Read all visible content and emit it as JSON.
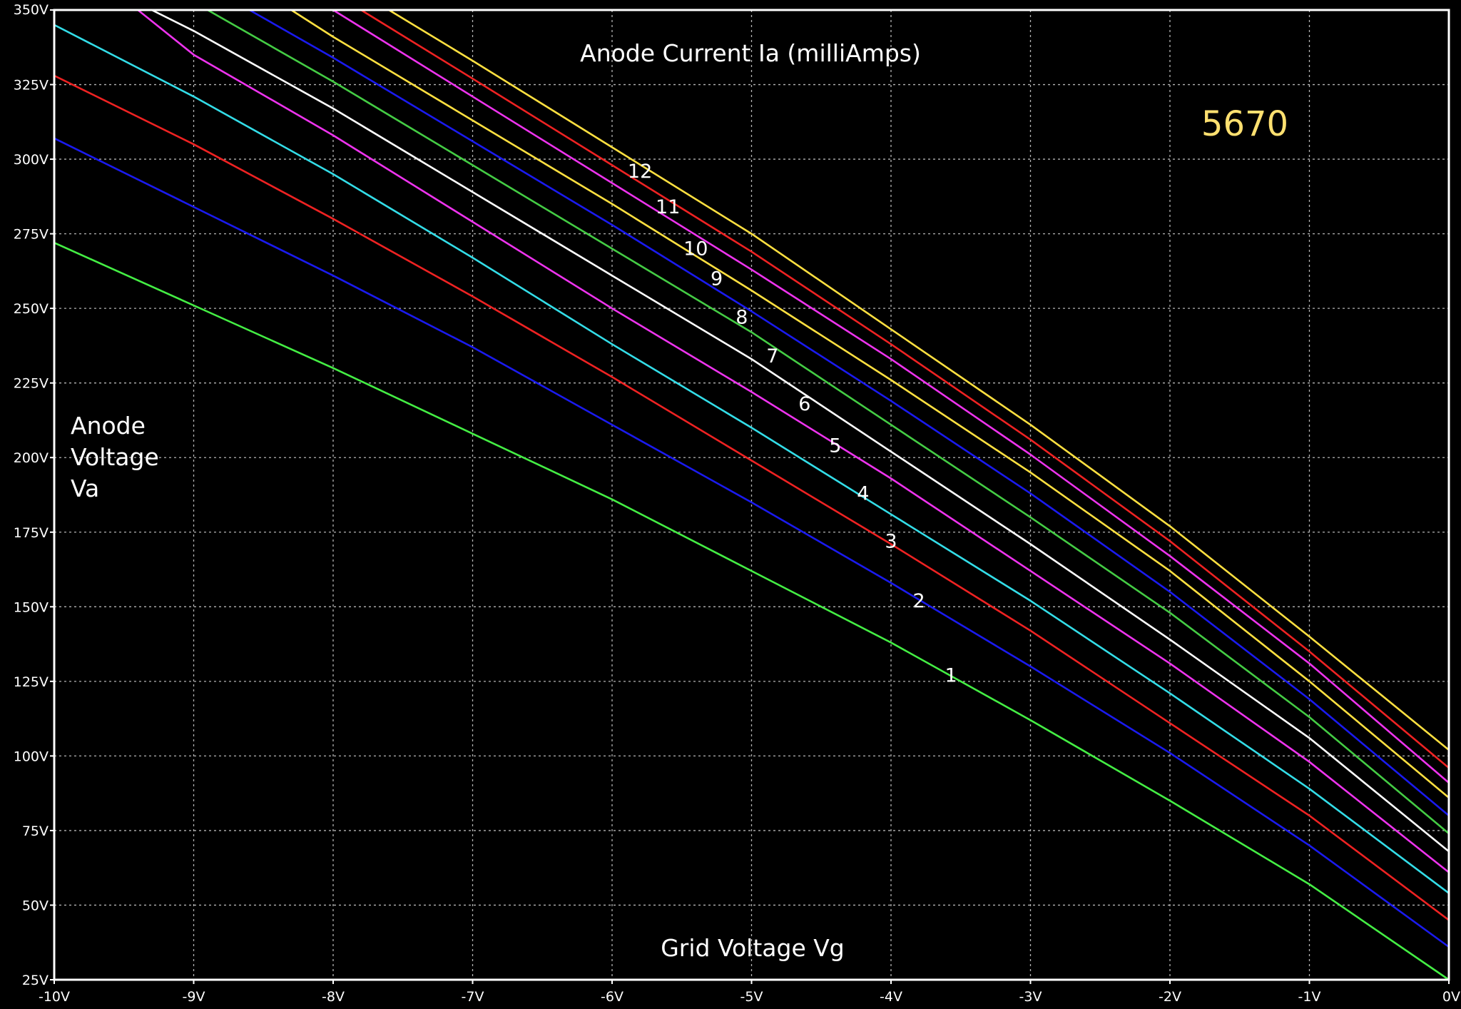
{
  "chart_data": {
    "type": "line",
    "title": "Anode Current Ia (milliAmps)",
    "subtitle": "5670",
    "xlabel": "Grid Voltage Vg",
    "ylabel": "Anode Voltage Va",
    "ylabel_lines": [
      "Anode",
      "Voltage",
      "Va"
    ],
    "xlim": [
      -10,
      0
    ],
    "ylim": [
      25,
      350
    ],
    "x_ticks": [
      -10,
      -9,
      -8,
      -7,
      -6,
      -5,
      -4,
      -3,
      -2,
      -1,
      0
    ],
    "y_ticks": [
      25,
      50,
      75,
      100,
      125,
      150,
      175,
      200,
      225,
      250,
      275,
      300,
      325,
      350
    ],
    "x_tick_labels": [
      "-10V",
      "-9V",
      "-8V",
      "-7V",
      "-6V",
      "-5V",
      "-4V",
      "-3V",
      "-2V",
      "-1V",
      "0V"
    ],
    "y_tick_labels": [
      "25V",
      "50V",
      "75V",
      "100V",
      "125V",
      "150V",
      "175V",
      "200V",
      "225V",
      "250V",
      "275V",
      "300V",
      "325V",
      "350V"
    ],
    "grid": true,
    "background_color": "#000000",
    "title_color": "#ffe070",
    "series": [
      {
        "name": "1",
        "color": "#44ee44",
        "x": [
          -10,
          -9,
          -8,
          -7,
          -6,
          -5,
          -4,
          -3,
          -2,
          -1,
          0
        ],
        "y": [
          272,
          251,
          230,
          208,
          186,
          162,
          138,
          112,
          85,
          57,
          25
        ]
      },
      {
        "name": "2",
        "color": "#1a1aee",
        "x": [
          -10,
          -9,
          -8,
          -7,
          -6,
          -5,
          -4,
          -3,
          -2,
          -1,
          0
        ],
        "y": [
          307,
          284,
          261,
          237,
          211,
          185,
          158,
          130,
          101,
          70,
          36
        ]
      },
      {
        "name": "3",
        "color": "#ee2222",
        "x": [
          -10,
          -9,
          -8,
          -7,
          -6,
          -5,
          -4,
          -3,
          -2,
          -1,
          0
        ],
        "y": [
          328,
          305,
          280,
          254,
          227,
          199,
          171,
          142,
          111,
          80,
          45
        ]
      },
      {
        "name": "4",
        "color": "#33dde8",
        "x": [
          -10,
          -9,
          -8,
          -7,
          -6,
          -5,
          -4,
          -3,
          -2,
          -1,
          0
        ],
        "y": [
          345,
          321,
          295,
          267,
          238,
          210,
          181,
          152,
          121,
          89,
          54
        ]
      },
      {
        "name": "5",
        "color": "#ee33ee",
        "x": [
          -9.4,
          -9,
          -8,
          -7,
          -6,
          -5,
          -4,
          -3,
          -2,
          -1,
          0
        ],
        "y": [
          350,
          335,
          308,
          279,
          250,
          222,
          193,
          162,
          131,
          98,
          61
        ]
      },
      {
        "name": "6",
        "color": "#ffffff",
        "x": [
          -9.3,
          -9,
          -8,
          -7,
          -6,
          -5,
          -4,
          -3,
          -2,
          -1,
          0
        ],
        "y": [
          350,
          343,
          317,
          289,
          261,
          233,
          202,
          171,
          139,
          106,
          68
        ]
      },
      {
        "name": "7",
        "color": "#44cc44",
        "x": [
          -8.9,
          -8,
          -7,
          -6,
          -5,
          -4,
          -3,
          -2,
          -1,
          0
        ],
        "y": [
          350,
          326,
          298,
          270,
          242,
          211,
          180,
          148,
          113,
          74
        ]
      },
      {
        "name": "8",
        "color": "#1a1aee",
        "x": [
          -8.6,
          -8,
          -7,
          -6,
          -5,
          -4,
          -3,
          -2,
          -1,
          0
        ],
        "y": [
          350,
          334,
          306,
          278,
          249,
          219,
          188,
          155,
          119,
          80
        ]
      },
      {
        "name": "9",
        "color": "#ffe040",
        "x": [
          -8.3,
          -8,
          -7,
          -6,
          -5,
          -4,
          -3,
          -2,
          -1,
          0
        ],
        "y": [
          350,
          341,
          313,
          285,
          256,
          226,
          195,
          162,
          125,
          86
        ]
      },
      {
        "name": "10",
        "color": "#ee33ee",
        "x": [
          -8.0,
          -7,
          -6,
          -5,
          -4,
          -3,
          -2,
          -1,
          0
        ],
        "y": [
          350,
          321,
          292,
          263,
          233,
          201,
          167,
          131,
          91
        ]
      },
      {
        "name": "11",
        "color": "#ee2222",
        "x": [
          -7.8,
          -7,
          -6,
          -5,
          -4,
          -3,
          -2,
          -1,
          0
        ],
        "y": [
          350,
          327,
          298,
          269,
          238,
          206,
          172,
          135,
          96
        ]
      },
      {
        "name": "12",
        "color": "#ffe040",
        "x": [
          -7.6,
          -7,
          -6,
          -5,
          -4,
          -3,
          -2,
          -1,
          0
        ],
        "y": [
          350,
          333,
          304,
          275,
          243,
          211,
          177,
          140,
          102
        ]
      }
    ],
    "annotations": [
      {
        "text": "1",
        "x": -3.57,
        "y": 127
      },
      {
        "text": "2",
        "x": -3.8,
        "y": 152
      },
      {
        "text": "3",
        "x": -4.0,
        "y": 172
      },
      {
        "text": "4",
        "x": -4.2,
        "y": 188
      },
      {
        "text": "5",
        "x": -4.4,
        "y": 204
      },
      {
        "text": "6",
        "x": -4.62,
        "y": 218
      },
      {
        "text": "7",
        "x": -4.85,
        "y": 234
      },
      {
        "text": "8",
        "x": -5.07,
        "y": 247
      },
      {
        "text": "9",
        "x": -5.25,
        "y": 260
      },
      {
        "text": "10",
        "x": -5.4,
        "y": 270
      },
      {
        "text": "11",
        "x": -5.6,
        "y": 284
      },
      {
        "text": "12",
        "x": -5.8,
        "y": 296
      }
    ]
  }
}
